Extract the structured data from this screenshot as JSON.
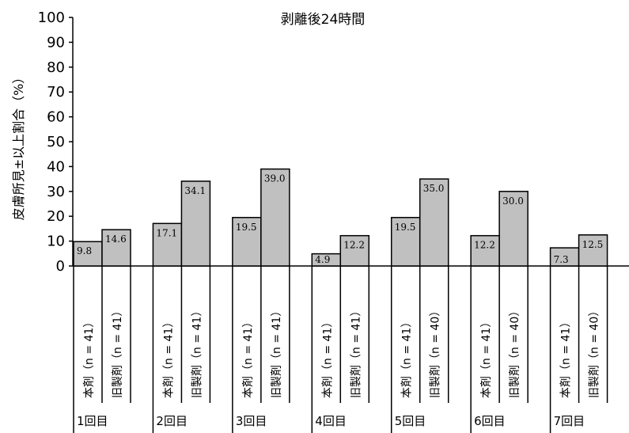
{
  "chart_data": {
    "type": "bar",
    "title": "剥離後24時間",
    "ylabel": "皮膚所見±以上割合（%）",
    "xlabel": "",
    "ylim": [
      0,
      100
    ],
    "yticks": [
      0,
      10,
      20,
      30,
      40,
      50,
      60,
      70,
      80,
      90,
      100
    ],
    "grid": false,
    "groups": [
      {
        "label": "1回目",
        "bars": [
          {
            "label": "本剤（n = 41）",
            "value": 9.8,
            "value_label": "9.8"
          },
          {
            "label": "旧製剤（n = 41）",
            "value": 14.6,
            "value_label": "14.6"
          }
        ]
      },
      {
        "label": "2回目",
        "bars": [
          {
            "label": "本剤（n = 41）",
            "value": 17.1,
            "value_label": "17.1"
          },
          {
            "label": "旧製剤（n = 41）",
            "value": 34.1,
            "value_label": "34.1"
          }
        ]
      },
      {
        "label": "3回目",
        "bars": [
          {
            "label": "本剤（n = 41）",
            "value": 19.5,
            "value_label": "19.5"
          },
          {
            "label": "旧製剤（n = 41）",
            "value": 39.0,
            "value_label": "39.0"
          }
        ]
      },
      {
        "label": "4回目",
        "bars": [
          {
            "label": "本剤（n = 41）",
            "value": 4.9,
            "value_label": "4.9"
          },
          {
            "label": "旧製剤（n = 41）",
            "value": 12.2,
            "value_label": "12.2"
          }
        ]
      },
      {
        "label": "5回目",
        "bars": [
          {
            "label": "本剤（n = 41）",
            "value": 19.5,
            "value_label": "19.5"
          },
          {
            "label": "旧製剤（n = 40）",
            "value": 35.0,
            "value_label": "35.0"
          }
        ]
      },
      {
        "label": "6回目",
        "bars": [
          {
            "label": "本剤（n = 41）",
            "value": 12.2,
            "value_label": "12.2"
          },
          {
            "label": "旧製剤（n = 40）",
            "value": 30.0,
            "value_label": "30.0"
          }
        ]
      },
      {
        "label": "7回目",
        "bars": [
          {
            "label": "本剤（n = 41）",
            "value": 7.3,
            "value_label": "7.3"
          },
          {
            "label": "旧製剤（n = 40）",
            "value": 12.5,
            "value_label": "12.5"
          }
        ]
      }
    ],
    "colors": {
      "bar_fill": "#c0c0c0",
      "stroke": "#000000"
    }
  }
}
